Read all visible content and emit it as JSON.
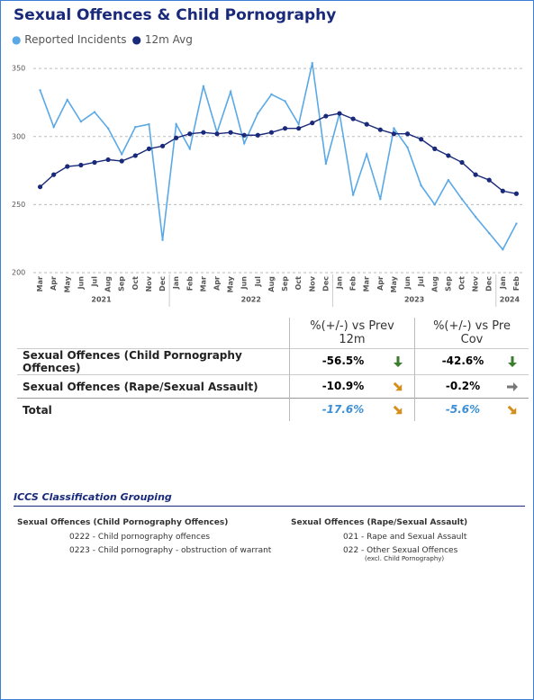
{
  "chart_data": {
    "type": "line",
    "title": "Sexual Offences & Child Pornography",
    "categories": [
      "Mar",
      "Apr",
      "May",
      "Jun",
      "Jul",
      "Aug",
      "Sep",
      "Oct",
      "Nov",
      "Dec",
      "Jan",
      "Feb",
      "Mar",
      "Apr",
      "May",
      "Jun",
      "Jul",
      "Aug",
      "Sep",
      "Oct",
      "Nov",
      "Dec",
      "Jan",
      "Feb",
      "Mar",
      "Apr",
      "May",
      "Jun",
      "Jul",
      "Aug",
      "Sep",
      "Oct",
      "Nov",
      "Dec",
      "Jan",
      "Feb"
    ],
    "year_groups": [
      {
        "label": "2021",
        "months": 10
      },
      {
        "label": "2022",
        "months": 12
      },
      {
        "label": "2023",
        "months": 12
      },
      {
        "label": "2024",
        "months": 2
      }
    ],
    "series": [
      {
        "name": "Reported Incidents",
        "color": "#5aa9e6",
        "values": [
          334,
          307,
          327,
          311,
          318,
          306,
          287,
          307,
          309,
          224,
          309,
          291,
          337,
          303,
          333,
          295,
          317,
          331,
          326,
          309,
          354,
          280,
          317,
          257,
          287,
          254,
          306,
          292,
          264,
          250,
          268,
          254,
          241,
          229,
          217,
          236
        ]
      },
      {
        "name": "12m Avg",
        "color": "#1a2a7a",
        "values": [
          263,
          272,
          278,
          279,
          281,
          283,
          282,
          286,
          291,
          293,
          299,
          302,
          303,
          302,
          303,
          301,
          301,
          303,
          306,
          306,
          310,
          315,
          317,
          313,
          309,
          305,
          302,
          302,
          298,
          291,
          286,
          281,
          272,
          268,
          260,
          258
        ]
      }
    ],
    "ylim": [
      200,
      360
    ],
    "yticks": [
      200,
      250,
      300,
      350
    ],
    "grid": true
  },
  "table": {
    "columns": [
      "%(+/-) vs Prev 12m",
      "%(+/-) vs Pre Cov"
    ],
    "rows": [
      {
        "label": "Sexual Offences (Child Pornography Offences)",
        "cells": [
          {
            "value": "-56.5%",
            "trend": "down"
          },
          {
            "value": "-42.6%",
            "trend": "down"
          }
        ]
      },
      {
        "label": "Sexual Offences (Rape/Sexual Assault)",
        "cells": [
          {
            "value": "-10.9%",
            "trend": "down-right"
          },
          {
            "value": "-0.2%",
            "trend": "right"
          }
        ]
      }
    ],
    "total": {
      "label": "Total",
      "cells": [
        {
          "value": "-17.6%",
          "trend": "down-right"
        },
        {
          "value": "-5.6%",
          "trend": "down-right"
        }
      ]
    }
  },
  "classification": {
    "title": "ICCS Classification Grouping",
    "groups": [
      {
        "heading": "Sexual Offences (Child Pornography Offences)",
        "items": [
          {
            "text": "0222 - Child pornography offences"
          },
          {
            "text": "0223 - Child pornography - obstruction of warrant"
          }
        ]
      },
      {
        "heading": "Sexual Offences (Rape/Sexual Assault)",
        "items": [
          {
            "text": "021 - Rape and Sexual Assault"
          },
          {
            "text": "022 - Other Sexual Offences",
            "note": "(excl. Child Pornography)"
          }
        ]
      }
    ]
  }
}
